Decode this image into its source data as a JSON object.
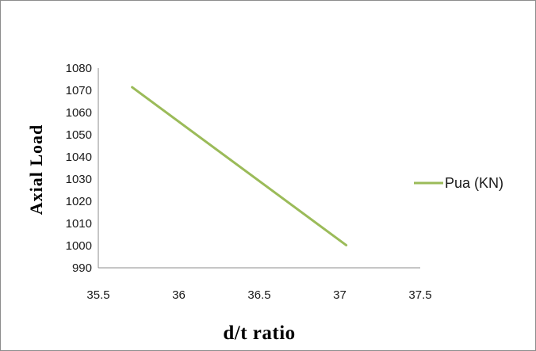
{
  "chart_data": {
    "type": "line",
    "title": "",
    "xlabel": "d/t ratio",
    "ylabel": "Axial Load",
    "xlim": [
      35.5,
      37.5
    ],
    "ylim": [
      990,
      1080
    ],
    "x_ticks": [
      "35.5",
      "36",
      "36.5",
      "37",
      "37.5"
    ],
    "y_ticks": [
      "990",
      "1000",
      "1010",
      "1020",
      "1030",
      "1040",
      "1050",
      "1060",
      "1070",
      "1080"
    ],
    "grid": false,
    "legend_position": "right",
    "series": [
      {
        "name": "Pua (KN)",
        "color": "#9bbb59",
        "x": [
          35.71,
          37.04
        ],
        "y": [
          1071.4,
          1000.2
        ]
      }
    ]
  }
}
